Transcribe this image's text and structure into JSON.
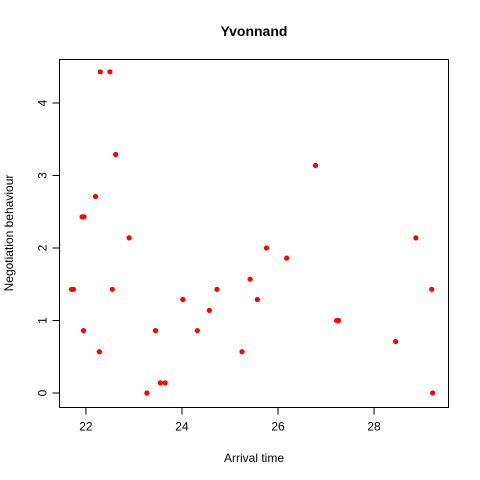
{
  "chart_data": {
    "type": "scatter",
    "title": "Yvonnand",
    "xlabel": "Arrival time",
    "ylabel": "Negotiation behaviour",
    "xlim": [
      21.45,
      29.55
    ],
    "ylim": [
      -0.2,
      4.6
    ],
    "xticks": [
      22,
      24,
      26,
      28
    ],
    "yticks": [
      0,
      1,
      2,
      3,
      4
    ],
    "grid": false,
    "point_color": "#ff0000",
    "points": [
      {
        "x": 21.7,
        "y": 1.43
      },
      {
        "x": 21.74,
        "y": 1.43
      },
      {
        "x": 21.92,
        "y": 2.43
      },
      {
        "x": 21.96,
        "y": 2.43
      },
      {
        "x": 21.95,
        "y": 0.86
      },
      {
        "x": 22.2,
        "y": 2.71
      },
      {
        "x": 22.28,
        "y": 0.57
      },
      {
        "x": 22.3,
        "y": 4.43
      },
      {
        "x": 22.5,
        "y": 4.43
      },
      {
        "x": 22.55,
        "y": 1.43
      },
      {
        "x": 22.62,
        "y": 3.29
      },
      {
        "x": 22.9,
        "y": 2.14
      },
      {
        "x": 23.27,
        "y": 0.0
      },
      {
        "x": 23.45,
        "y": 0.86
      },
      {
        "x": 23.55,
        "y": 0.14
      },
      {
        "x": 23.65,
        "y": 0.14
      },
      {
        "x": 24.02,
        "y": 1.29
      },
      {
        "x": 24.32,
        "y": 0.86
      },
      {
        "x": 24.57,
        "y": 1.14
      },
      {
        "x": 24.73,
        "y": 1.43
      },
      {
        "x": 25.25,
        "y": 0.57
      },
      {
        "x": 25.42,
        "y": 1.57
      },
      {
        "x": 25.57,
        "y": 1.29
      },
      {
        "x": 25.76,
        "y": 2.0
      },
      {
        "x": 26.18,
        "y": 1.86
      },
      {
        "x": 26.78,
        "y": 3.14
      },
      {
        "x": 27.22,
        "y": 1.0
      },
      {
        "x": 27.26,
        "y": 1.0
      },
      {
        "x": 28.45,
        "y": 0.71
      },
      {
        "x": 28.87,
        "y": 2.14
      },
      {
        "x": 29.2,
        "y": 1.43
      },
      {
        "x": 29.22,
        "y": 0.0
      }
    ]
  }
}
